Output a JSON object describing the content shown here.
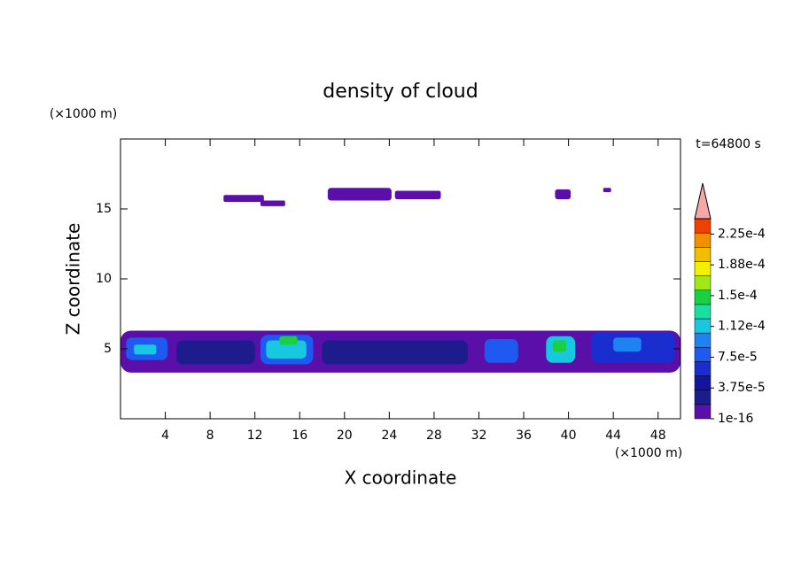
{
  "chart_data": {
    "type": "contour",
    "title": "density of cloud",
    "x_label": "X coordinate",
    "y_label": "Z coordinate",
    "x_unit": "(×1000 m)",
    "y_unit": "(×1000 m)",
    "time_label": "t=64800 s",
    "xlim": [
      0,
      50
    ],
    "ylim": [
      0,
      20
    ],
    "xticks": [
      4,
      8,
      12,
      16,
      20,
      24,
      28,
      32,
      36,
      40,
      44,
      48
    ],
    "yticks": [
      5,
      10,
      15
    ],
    "colorbar": {
      "lim": [
        1e-16,
        0.00024375
      ],
      "colors": [
        "#5a10a8",
        "#1c1c8c",
        "#14149c",
        "#1a2ed0",
        "#1e5af0",
        "#1e82f0",
        "#18c8e0",
        "#18e0a0",
        "#18d040",
        "#a0e818",
        "#f0f000",
        "#f0c000",
        "#f09000",
        "#f04000"
      ],
      "extend_color": "#f4a8a8",
      "ticks": [
        {
          "value": 1e-16,
          "label": "1e-16"
        },
        {
          "value": 3.75e-05,
          "label": "3.75e-5"
        },
        {
          "value": 7.5e-05,
          "label": "7.5e-5"
        },
        {
          "value": 0.0001125,
          "label": "1.12e-4"
        },
        {
          "value": 0.00015,
          "label": "1.5e-4"
        },
        {
          "value": 0.0001875,
          "label": "1.88e-4"
        },
        {
          "value": 0.000225,
          "label": "2.25e-4"
        }
      ]
    },
    "regions": [
      {
        "x": [
          0,
          50
        ],
        "z": [
          3.3,
          6.3
        ],
        "level": 1e-16
      },
      {
        "x": [
          9.2,
          12.8
        ],
        "z": [
          15.5,
          16.0
        ],
        "level": 1e-16
      },
      {
        "x": [
          12.5,
          14.7
        ],
        "z": [
          15.2,
          15.6
        ],
        "level": 1e-16
      },
      {
        "x": [
          18.5,
          24.2
        ],
        "z": [
          15.6,
          16.5
        ],
        "level": 1e-16
      },
      {
        "x": [
          24.5,
          28.6
        ],
        "z": [
          15.7,
          16.3
        ],
        "level": 1e-16
      },
      {
        "x": [
          38.8,
          40.2
        ],
        "z": [
          15.7,
          16.4
        ],
        "level": 1e-16
      },
      {
        "x": [
          43.1,
          43.8
        ],
        "z": [
          16.2,
          16.5
        ],
        "level": 1e-16
      },
      {
        "x": [
          5,
          12
        ],
        "z": [
          3.9,
          5.6
        ],
        "level": 2e-05
      },
      {
        "x": [
          18,
          31
        ],
        "z": [
          3.9,
          5.6
        ],
        "level": 3e-05
      },
      {
        "x": [
          0.5,
          4.2
        ],
        "z": [
          4.2,
          5.8
        ],
        "level": 7.5e-05
      },
      {
        "x": [
          1.2,
          3.2
        ],
        "z": [
          4.6,
          5.3
        ],
        "level": 0.00011
      },
      {
        "x": [
          12.5,
          17.2
        ],
        "z": [
          3.9,
          6.0
        ],
        "level": 7.5e-05
      },
      {
        "x": [
          13,
          16.6
        ],
        "z": [
          4.3,
          5.6
        ],
        "level": 0.000105
      },
      {
        "x": [
          14.2,
          15.8
        ],
        "z": [
          5.3,
          5.9
        ],
        "level": 0.00014
      },
      {
        "x": [
          32.5,
          35.5
        ],
        "z": [
          4.0,
          5.7
        ],
        "level": 8e-05
      },
      {
        "x": [
          38,
          40.6
        ],
        "z": [
          4.0,
          5.9
        ],
        "level": 0.000105
      },
      {
        "x": [
          38.6,
          39.8
        ],
        "z": [
          4.8,
          5.6
        ],
        "level": 0.00014
      },
      {
        "x": [
          42,
          49.5
        ],
        "z": [
          4.0,
          6.2
        ],
        "level": 6e-05
      },
      {
        "x": [
          44,
          46.5
        ],
        "z": [
          4.8,
          5.8
        ],
        "level": 9e-05
      }
    ]
  }
}
